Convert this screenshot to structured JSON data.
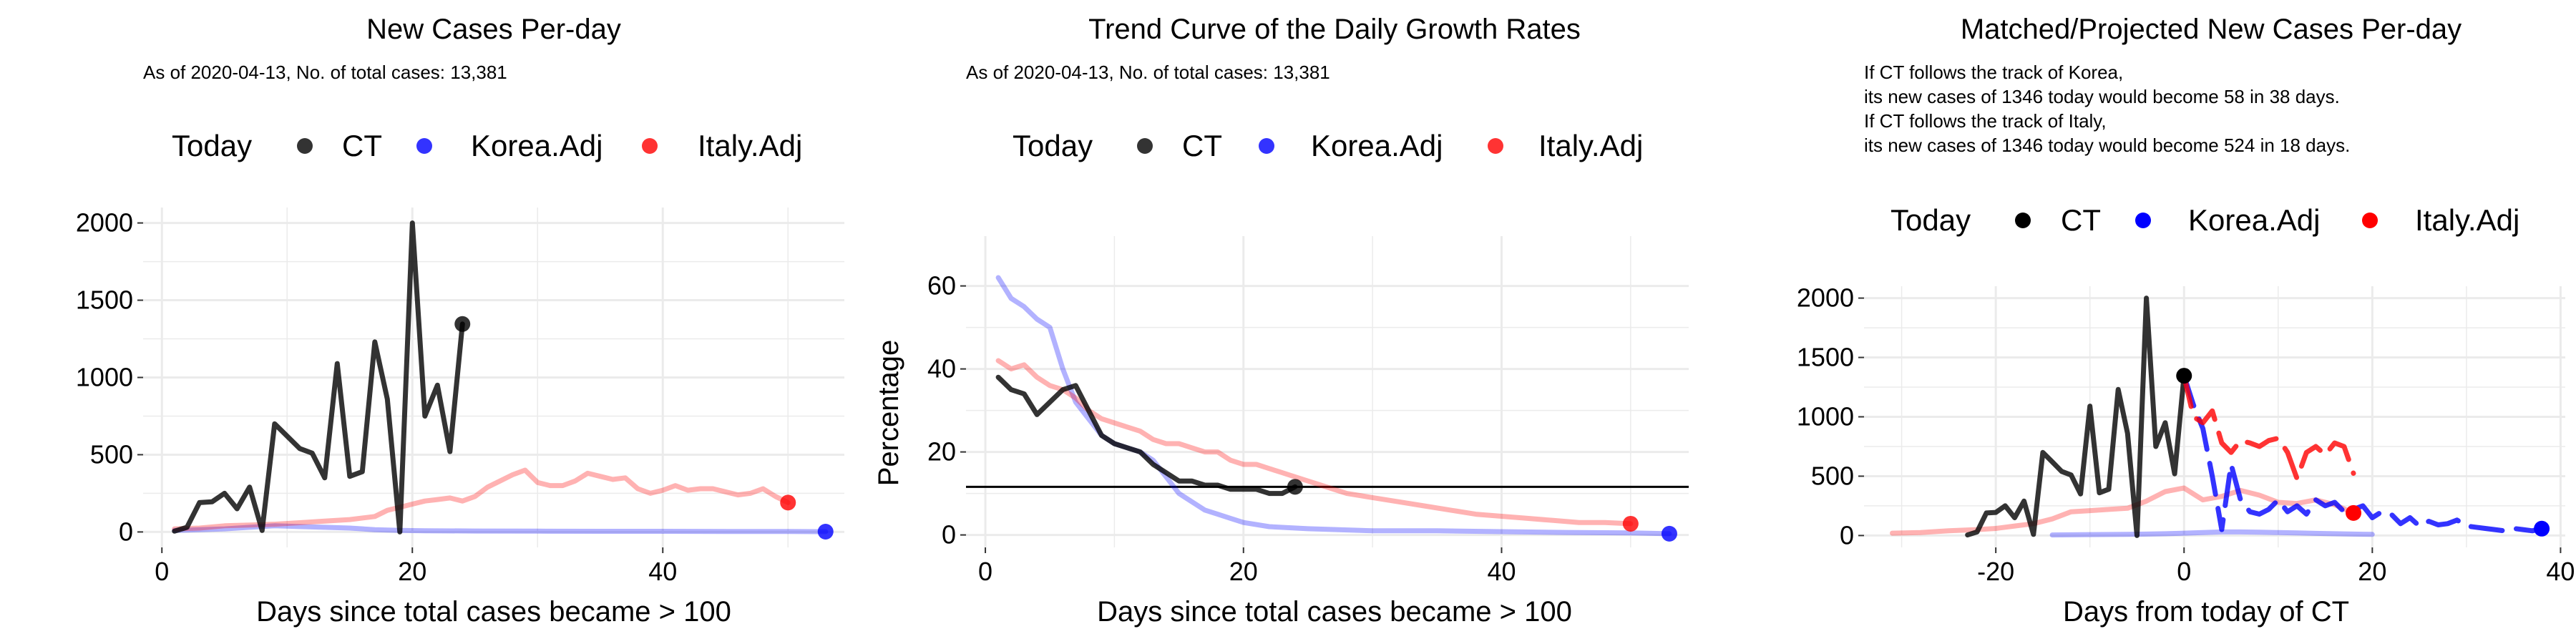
{
  "colors": {
    "ct": "#000000",
    "korea": "#0000ff",
    "italy": "#ff0000",
    "grid": "#ebebeb",
    "background": "#ffffff"
  },
  "legend": {
    "title": "Today",
    "items": [
      "CT",
      "Korea.Adj",
      "Italy.Adj"
    ]
  },
  "chart_data": [
    {
      "type": "line",
      "title": "New Cases Per-day",
      "subtitle": [
        "As of 2020-04-13, No. of total cases: 13,381"
      ],
      "xlabel": "Days since total cases became > 100",
      "ylabel": "",
      "xlim": [
        -1.5,
        54.5
      ],
      "ylim": [
        -100,
        2100
      ],
      "xticks": [
        0,
        20,
        40
      ],
      "yticks": [
        0,
        500,
        1000,
        1500,
        2000
      ],
      "grid": true,
      "legend_position": "top",
      "series": [
        {
          "name": "CT",
          "color": "#000000",
          "alpha": 0.8,
          "x": [
            1,
            2,
            3,
            4,
            5,
            6,
            7,
            8,
            9,
            10,
            11,
            12,
            13,
            14,
            15,
            16,
            17,
            18,
            19,
            20,
            21,
            22,
            23,
            24
          ],
          "y": [
            5,
            30,
            190,
            195,
            250,
            150,
            290,
            10,
            700,
            620,
            540,
            510,
            350,
            1090,
            360,
            390,
            1230,
            860,
            0,
            2000,
            750,
            950,
            520,
            1346
          ]
        },
        {
          "name": "Korea.Adj",
          "color": "#0000ff",
          "alpha": 0.3,
          "x": [
            1,
            3,
            5,
            7,
            9,
            11,
            13,
            15,
            17,
            19,
            21,
            25,
            30,
            35,
            40,
            45,
            50,
            53
          ],
          "y": [
            10,
            15,
            20,
            30,
            40,
            35,
            30,
            25,
            15,
            10,
            8,
            6,
            5,
            4,
            4,
            3,
            3,
            2
          ]
        },
        {
          "name": "Italy.Adj",
          "color": "#ff0000",
          "alpha": 0.3,
          "x": [
            1,
            3,
            5,
            7,
            9,
            11,
            13,
            15,
            17,
            18,
            19,
            20,
            21,
            22,
            23,
            24,
            25,
            26,
            27,
            28,
            29,
            30,
            31,
            32,
            33,
            34,
            35,
            36,
            37,
            38,
            39,
            40,
            41,
            42,
            43,
            44,
            45,
            46,
            47,
            48,
            49,
            50
          ],
          "y": [
            20,
            25,
            40,
            45,
            50,
            60,
            70,
            80,
            100,
            140,
            160,
            180,
            200,
            210,
            220,
            200,
            230,
            290,
            330,
            370,
            400,
            320,
            300,
            300,
            330,
            380,
            360,
            340,
            350,
            280,
            250,
            270,
            300,
            270,
            280,
            280,
            260,
            240,
            250,
            280,
            230,
            190
          ]
        }
      ],
      "today_points": [
        {
          "name": "CT",
          "x": 24,
          "y": 1346
        },
        {
          "name": "Korea.Adj",
          "x": 53,
          "y": 2
        },
        {
          "name": "Italy.Adj",
          "x": 50,
          "y": 190
        }
      ]
    },
    {
      "type": "line",
      "title": "Trend Curve of the Daily Growth Rates",
      "subtitle": [
        "As of 2020-04-13, No. of total cases: 13,381"
      ],
      "xlabel": "Days since total cases became > 100",
      "ylabel": "Percentage",
      "xlim": [
        -1.5,
        54.5
      ],
      "ylim": [
        -3,
        72
      ],
      "xticks": [
        0,
        20,
        40
      ],
      "yticks": [
        0,
        20,
        40,
        60
      ],
      "grid": true,
      "hline": 11.6,
      "legend_position": "top",
      "series": [
        {
          "name": "CT",
          "color": "#000000",
          "alpha": 0.8,
          "x": [
            1,
            2,
            3,
            4,
            5,
            6,
            7,
            8,
            9,
            10,
            11,
            12,
            13,
            14,
            15,
            16,
            17,
            18,
            19,
            20,
            21,
            22,
            23,
            24
          ],
          "y": [
            38,
            35,
            34,
            29,
            32,
            35,
            36,
            30,
            24,
            22,
            21,
            20,
            17,
            15,
            13,
            13,
            12,
            12,
            11,
            11,
            11,
            10,
            10,
            11.6
          ]
        },
        {
          "name": "Korea.Adj",
          "color": "#0000ff",
          "alpha": 0.3,
          "x": [
            1,
            2,
            3,
            4,
            5,
            6,
            7,
            8,
            9,
            10,
            11,
            12,
            13,
            14,
            15,
            16,
            17,
            18,
            19,
            20,
            22,
            25,
            30,
            35,
            40,
            45,
            50,
            53
          ],
          "y": [
            62,
            57,
            55,
            52,
            50,
            40,
            32,
            28,
            24,
            22,
            21,
            20,
            18,
            14,
            10,
            8,
            6,
            5,
            4,
            3,
            2,
            1.5,
            1,
            1,
            0.8,
            0.6,
            0.5,
            0.3
          ]
        },
        {
          "name": "Italy.Adj",
          "color": "#ff0000",
          "alpha": 0.3,
          "x": [
            1,
            2,
            3,
            4,
            5,
            6,
            7,
            8,
            9,
            10,
            11,
            12,
            13,
            14,
            15,
            16,
            17,
            18,
            19,
            20,
            21,
            22,
            23,
            24,
            25,
            26,
            28,
            30,
            32,
            34,
            36,
            38,
            40,
            42,
            44,
            46,
            48,
            50
          ],
          "y": [
            42,
            40,
            41,
            38,
            36,
            35,
            33,
            30,
            28,
            27,
            26,
            25,
            23,
            22,
            22,
            21,
            20,
            20,
            18,
            17,
            17,
            16,
            15,
            14,
            13,
            12,
            10,
            9,
            8,
            7,
            6,
            5,
            4.5,
            4,
            3.5,
            3,
            3,
            2.7
          ]
        }
      ],
      "today_points": [
        {
          "name": "CT",
          "x": 24,
          "y": 11.6
        },
        {
          "name": "Korea.Adj",
          "x": 53,
          "y": 0.3
        },
        {
          "name": "Italy.Adj",
          "x": 50,
          "y": 2.7
        }
      ]
    },
    {
      "type": "line",
      "title": "Matched/Projected New Cases Per-day",
      "subtitle": [
        "If CT follows the track of Korea,",
        "its new cases of 1346 today would become 58 in 38 days.",
        "If CT follows the track of Italy,",
        "its new cases of 1346 today would become 524 in 18 days."
      ],
      "xlabel": "Days from today of CT",
      "ylabel": "",
      "xlim": [
        -34,
        40.5
      ],
      "ylim": [
        -100,
        2100
      ],
      "xticks": [
        -20,
        0,
        20,
        40
      ],
      "yticks": [
        0,
        500,
        1000,
        1500,
        2000
      ],
      "grid": true,
      "legend_position": "top",
      "series": [
        {
          "name": "CT",
          "color": "#000000",
          "alpha": 0.8,
          "x": [
            -23,
            -22,
            -21,
            -20,
            -19,
            -18,
            -17,
            -16,
            -15,
            -14,
            -13,
            -12,
            -11,
            -10,
            -9,
            -8,
            -7,
            -6,
            -5,
            -4,
            -3,
            -2,
            -1,
            0
          ],
          "y": [
            5,
            30,
            190,
            195,
            250,
            150,
            290,
            10,
            700,
            620,
            540,
            510,
            350,
            1090,
            360,
            390,
            1230,
            860,
            0,
            2000,
            750,
            950,
            520,
            1346
          ]
        },
        {
          "name": "Korea.Adj (matched)",
          "color": "#0000ff",
          "alpha": 0.3,
          "x": [
            -14,
            -10,
            -6,
            -4,
            -2,
            0,
            2,
            4,
            6,
            8,
            10,
            12,
            14,
            16,
            18,
            20
          ],
          "y": [
            5,
            8,
            10,
            12,
            15,
            20,
            25,
            30,
            30,
            28,
            25,
            22,
            18,
            15,
            12,
            10
          ]
        },
        {
          "name": "Italy.Adj (matched)",
          "color": "#ff0000",
          "alpha": 0.3,
          "x": [
            -31,
            -28,
            -25,
            -22,
            -20,
            -18,
            -16,
            -14,
            -12,
            -10,
            -8,
            -6,
            -4,
            -2,
            0,
            2,
            4,
            6,
            8,
            10,
            12,
            14,
            16,
            18
          ],
          "y": [
            20,
            25,
            40,
            50,
            60,
            80,
            100,
            140,
            200,
            210,
            220,
            230,
            290,
            370,
            400,
            300,
            330,
            380,
            340,
            280,
            270,
            300,
            260,
            190
          ]
        },
        {
          "name": "Korea.Adj (projected)",
          "color": "#0000ff",
          "alpha": 0.8,
          "dash": true,
          "x": [
            0,
            1,
            2,
            3,
            4,
            5,
            6,
            7,
            8,
            9,
            10,
            11,
            12,
            13,
            14,
            15,
            16,
            17,
            18,
            19,
            20,
            21,
            22,
            23,
            24,
            25,
            26,
            27,
            28,
            29,
            30,
            31,
            32,
            33,
            34,
            35,
            36,
            37,
            38
          ],
          "y": [
            1346,
            1100,
            900,
            500,
            50,
            600,
            300,
            200,
            180,
            220,
            300,
            200,
            250,
            180,
            300,
            250,
            280,
            200,
            220,
            250,
            150,
            200,
            180,
            100,
            150,
            80,
            120,
            90,
            100,
            130,
            80,
            70,
            60,
            50,
            40,
            60,
            50,
            40,
            58
          ]
        },
        {
          "name": "Italy.Adj (projected)",
          "color": "#ff0000",
          "alpha": 0.8,
          "dash": true,
          "x": [
            0,
            1,
            2,
            3,
            4,
            5,
            6,
            7,
            8,
            9,
            10,
            11,
            12,
            13,
            14,
            15,
            16,
            17,
            18
          ],
          "y": [
            1346,
            1000,
            950,
            1050,
            780,
            700,
            800,
            780,
            750,
            800,
            820,
            700,
            480,
            700,
            750,
            680,
            780,
            750,
            524
          ]
        }
      ],
      "today_points": [
        {
          "name": "CT",
          "x": 0,
          "y": 1346
        },
        {
          "name": "Korea.Adj",
          "x": 38,
          "y": 58
        },
        {
          "name": "Italy.Adj",
          "x": 18,
          "y": 190
        }
      ]
    }
  ]
}
